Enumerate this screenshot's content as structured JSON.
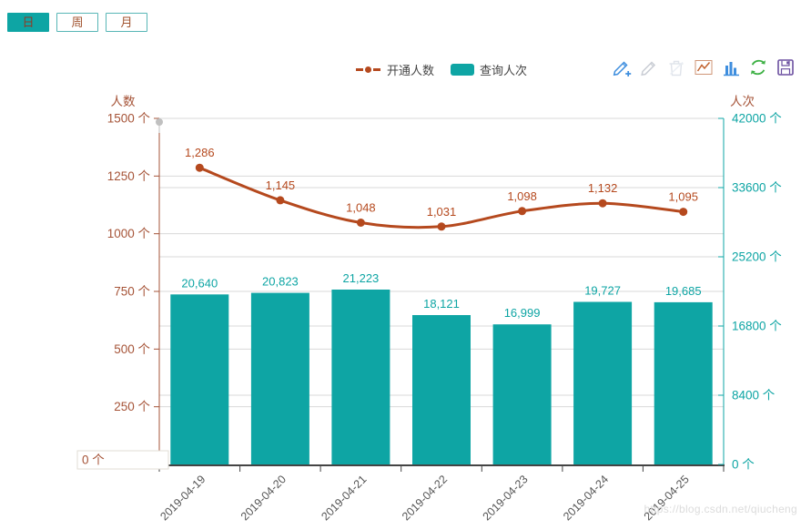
{
  "period_switcher": {
    "buttons": [
      {
        "label": "日",
        "selected": true
      },
      {
        "label": "周",
        "selected": false
      },
      {
        "label": "月",
        "selected": false
      }
    ]
  },
  "legend": {
    "items": [
      {
        "label": "开通人数",
        "series": "line"
      },
      {
        "label": "查询人次",
        "series": "bar"
      }
    ]
  },
  "toolbar": {
    "icons": [
      "pencil-add",
      "pencil",
      "trash",
      "line-chart",
      "bar-chart",
      "refresh",
      "save-image"
    ]
  },
  "watermark": "https://blog.csdn.net/qiucheng",
  "colors": {
    "teal": "#0ea5a4",
    "brick": "#b5491e",
    "axis_brown": "#a65438",
    "grid": "#d9d9d9",
    "x_axis": "#444444",
    "x_label": "#555555",
    "handle": "#c0c0c0",
    "zero_box_border": "#e2ded6"
  },
  "chart_data": {
    "type": "bar+line",
    "categories": [
      "2019-04-19",
      "2019-04-20",
      "2019-04-21",
      "2019-04-22",
      "2019-04-23",
      "2019-04-24",
      "2019-04-25"
    ],
    "series": [
      {
        "name": "开通人数",
        "type": "line",
        "y_axis": "left",
        "color": "#b5491e",
        "smooth": true,
        "values": [
          1286,
          1145,
          1048,
          1031,
          1098,
          1132,
          1095
        ],
        "labels": [
          "1,286",
          "1,145",
          "1,048",
          "1,031",
          "1,098",
          "1,132",
          "1,095"
        ]
      },
      {
        "name": "查询人次",
        "type": "bar",
        "y_axis": "right",
        "color": "#0ea5a4",
        "values": [
          20640,
          20823,
          21223,
          18121,
          16999,
          19727,
          19685
        ],
        "labels": [
          "20,640",
          "20,823",
          "21,223",
          "18,121",
          "16,999",
          "19,727",
          "19,685"
        ]
      }
    ],
    "y_axis_left": {
      "name": "人数",
      "min": 0,
      "max": 1500,
      "interval": 250,
      "unit": "个",
      "color": "#a65438",
      "tick_labels": [
        "0 个",
        "250 个",
        "500 个",
        "750 个",
        "1000 个",
        "1250 个",
        "1500 个"
      ]
    },
    "y_axis_right": {
      "name": "人次",
      "min": 0,
      "max": 42000,
      "interval": 8400,
      "unit": "个",
      "color": "#0ea5a4",
      "tick_labels": [
        "0 个",
        "8400 个",
        "16800 个",
        "25200 个",
        "33600 个",
        "42000 个"
      ]
    },
    "x_axis": {
      "label_rotate_deg": 45
    },
    "grid": true,
    "legend_position": "top-center",
    "zero_box_label": "0 个"
  }
}
